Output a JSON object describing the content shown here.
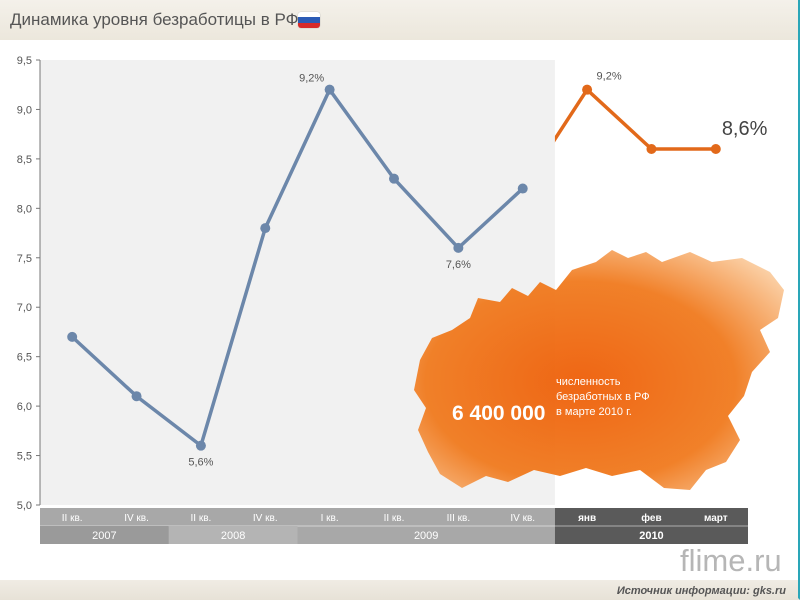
{
  "header": {
    "title": "Динамика уровня безработицы в РФ",
    "flag_colors": [
      "#ffffff",
      "#2c5bb5",
      "#d62a2a"
    ]
  },
  "colors": {
    "history_line": "#6c87aa",
    "recent_line": "#e2691a",
    "shaded_area": "#f1f1f1",
    "axis_band_grey": "#a8a8a8",
    "axis_band_dark": "#5a5a5a",
    "callout_orange": "#f07a1e"
  },
  "chart_data": {
    "type": "line",
    "title": "Динамика уровня безработицы в РФ",
    "ylim": [
      5.0,
      9.5
    ],
    "y_ticks": [
      "5,0",
      "5,5",
      "6,0",
      "6,5",
      "7,0",
      "7,5",
      "8,0",
      "8,5",
      "9,0",
      "9,5"
    ],
    "categories": [
      "II кв.",
      "IV кв.",
      "II кв.",
      "IV кв.",
      "I кв.",
      "II кв.",
      "III кв.",
      "IV кв.",
      "янв",
      "фев",
      "март"
    ],
    "year_groups": [
      {
        "label": "2007",
        "count": 2
      },
      {
        "label": "2008",
        "count": 2
      },
      {
        "label": "2009",
        "count": 4
      },
      {
        "label": "2010",
        "count": 3
      }
    ],
    "series": [
      {
        "values": [
          6.7,
          6.1,
          5.6,
          7.8,
          9.2,
          8.3,
          7.6,
          8.2,
          9.2,
          8.6,
          8.6
        ]
      }
    ],
    "recent_from_index": 7,
    "point_labels": [
      {
        "index": 2,
        "text": "5,6%"
      },
      {
        "index": 4,
        "text": "9,2%"
      },
      {
        "index": 6,
        "text": "7,6%"
      },
      {
        "index": 8,
        "text": "9,2%"
      },
      {
        "index": 10,
        "text": "8,6%"
      }
    ],
    "grid": false,
    "legend": "none"
  },
  "callout": {
    "number": "6 400 000",
    "text_lines": [
      "численность",
      "безработных в РФ",
      "в марте 2010 г."
    ]
  },
  "watermark": "flime.ru",
  "source": "Источник информации: gks.ru"
}
